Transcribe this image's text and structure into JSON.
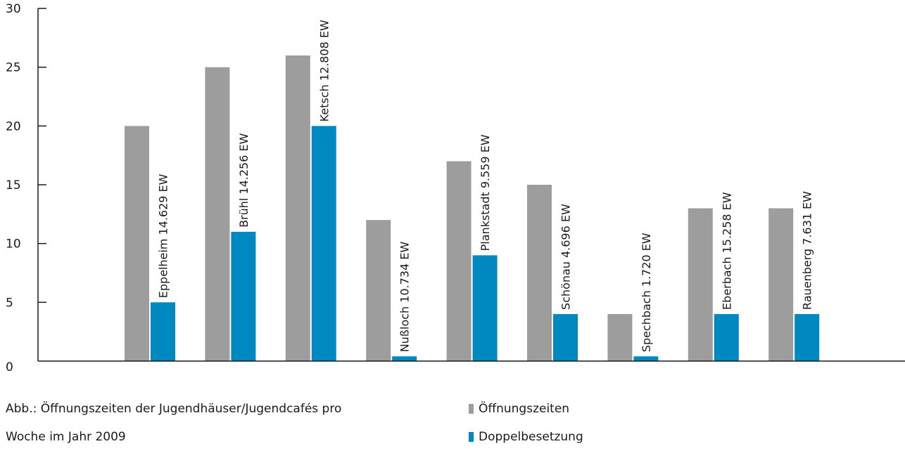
{
  "colors": {
    "open": "#9d9d9d",
    "double": "#0088c0",
    "axis": "#1a1a1a"
  },
  "chart_data": {
    "type": "bar",
    "ylim": [
      0,
      30
    ],
    "yticks": [
      0,
      5,
      10,
      15,
      20,
      25,
      30
    ],
    "grid": false,
    "legend_position": "bottom-right",
    "categories": [
      "Eppelheim 14.629 EW",
      "Brühl 14.256 EW",
      "Ketsch 12.808 EW",
      "Nußloch 10.734 EW",
      "Plankstadt 9.559 EW",
      "Schönau 4.696 EW",
      "Spechbach 1.720 EW",
      "Eberbach 15.258 EW",
      "Rauenberg 7.631 EW"
    ],
    "series": [
      {
        "name": "Öffnungszeiten",
        "values": [
          20,
          25,
          26,
          12,
          17,
          15,
          4,
          13,
          13
        ]
      },
      {
        "name": "Doppelbesetzung",
        "values": [
          5,
          11,
          20,
          0.4,
          9,
          4,
          0.4,
          4,
          4
        ]
      }
    ]
  },
  "caption": {
    "line1": "Abb.: Öffnungszeiten der Jugendhäuser/Jugendcafés pro",
    "line2": "Woche im Jahr 2009"
  }
}
